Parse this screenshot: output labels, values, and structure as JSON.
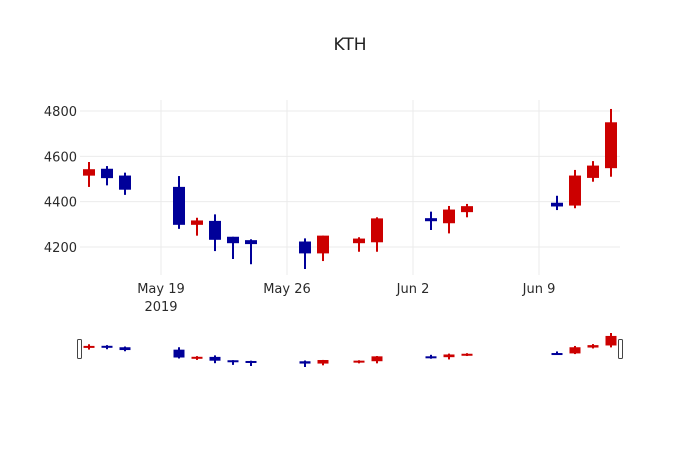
{
  "chart_data": {
    "type": "candlestick",
    "title": "KTH",
    "xlabel": "",
    "ylabel": "",
    "ylim": [
      4080,
      4850
    ],
    "yticks": [
      4200,
      4400,
      4600,
      4800
    ],
    "xticks": [
      {
        "date": "2019-05-19",
        "label": "May 19",
        "sublabel": "2019"
      },
      {
        "date": "2019-05-26",
        "label": "May 26",
        "sublabel": ""
      },
      {
        "date": "2019-06-02",
        "label": "Jun 2",
        "sublabel": ""
      },
      {
        "date": "2019-06-09",
        "label": "Jun 9",
        "sublabel": ""
      }
    ],
    "xrange": [
      "2019-05-14",
      "2019-06-14"
    ],
    "grid": true,
    "legend": false,
    "rangeslider": true,
    "colors": {
      "increasing": "#cc0000",
      "decreasing": "#000099",
      "grid": "#ebebeb",
      "text": "#2a2a2a"
    },
    "series": [
      {
        "date": "2019-05-15",
        "open": 4517,
        "high": 4575,
        "low": 4465,
        "close": 4541
      },
      {
        "date": "2019-05-16",
        "open": 4543,
        "high": 4557,
        "low": 4472,
        "close": 4506
      },
      {
        "date": "2019-05-17",
        "open": 4513,
        "high": 4528,
        "low": 4430,
        "close": 4455
      },
      {
        "date": "2019-05-20",
        "open": 4463,
        "high": 4513,
        "low": 4280,
        "close": 4300
      },
      {
        "date": "2019-05-21",
        "open": 4300,
        "high": 4329,
        "low": 4250,
        "close": 4315
      },
      {
        "date": "2019-05-22",
        "open": 4313,
        "high": 4344,
        "low": 4182,
        "close": 4234
      },
      {
        "date": "2019-05-23",
        "open": 4243,
        "high": 4245,
        "low": 4147,
        "close": 4219
      },
      {
        "date": "2019-05-24",
        "open": 4228,
        "high": 4234,
        "low": 4124,
        "close": 4215
      },
      {
        "date": "2019-05-27",
        "open": 4222,
        "high": 4238,
        "low": 4103,
        "close": 4174
      },
      {
        "date": "2019-05-28",
        "open": 4174,
        "high": 4250,
        "low": 4138,
        "close": 4248
      },
      {
        "date": "2019-05-30",
        "open": 4219,
        "high": 4243,
        "low": 4179,
        "close": 4235
      },
      {
        "date": "2019-05-31",
        "open": 4223,
        "high": 4331,
        "low": 4179,
        "close": 4324
      },
      {
        "date": "2019-06-03",
        "open": 4325,
        "high": 4356,
        "low": 4275,
        "close": 4316
      },
      {
        "date": "2019-06-04",
        "open": 4307,
        "high": 4381,
        "low": 4260,
        "close": 4363
      },
      {
        "date": "2019-06-05",
        "open": 4356,
        "high": 4390,
        "low": 4331,
        "close": 4378
      },
      {
        "date": "2019-06-10",
        "open": 4393,
        "high": 4426,
        "low": 4363,
        "close": 4381
      },
      {
        "date": "2019-06-11",
        "open": 4385,
        "high": 4540,
        "low": 4371,
        "close": 4513
      },
      {
        "date": "2019-06-12",
        "open": 4507,
        "high": 4579,
        "low": 4488,
        "close": 4557
      },
      {
        "date": "2019-06-13",
        "open": 4550,
        "high": 4809,
        "low": 4510,
        "close": 4748
      }
    ]
  }
}
